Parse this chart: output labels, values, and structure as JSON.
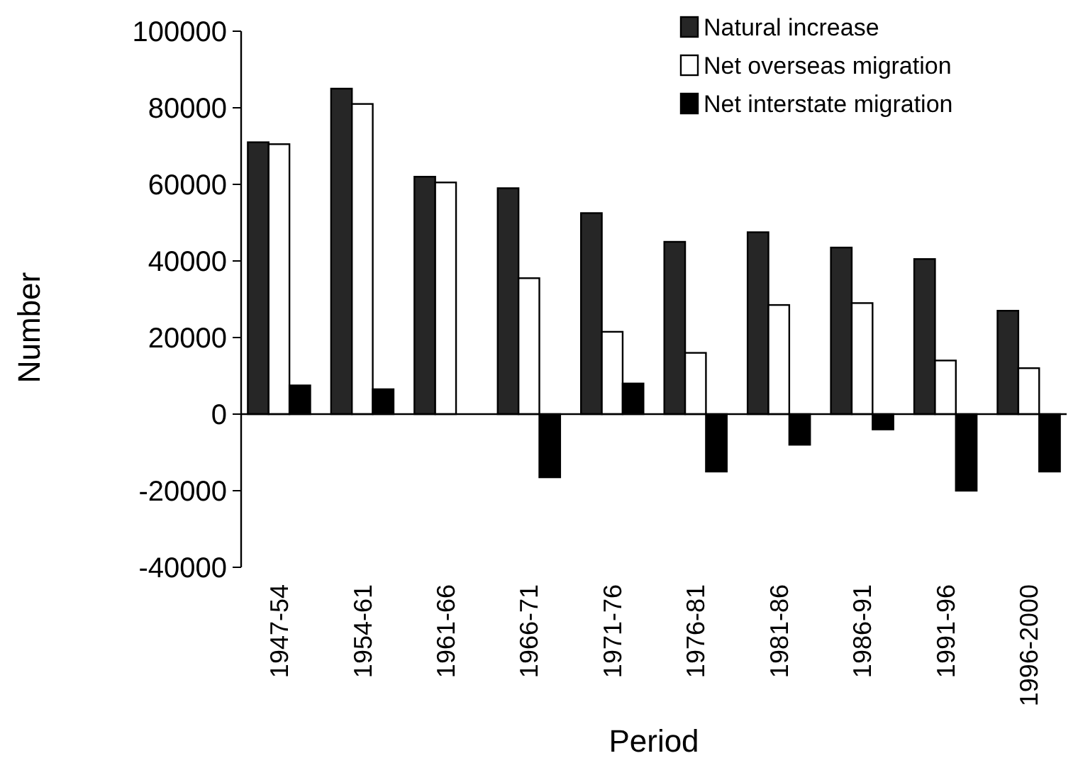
{
  "chart_data": {
    "type": "bar",
    "xlabel": "Period",
    "ylabel": "Number",
    "categories": [
      "1947-54",
      "1954-61",
      "1961-66",
      "1966-71",
      "1971-76",
      "1976-81",
      "1981-86",
      "1986-91",
      "1991-96",
      "1996-2000"
    ],
    "series": [
      {
        "name": "Natural increase",
        "color": "#262626",
        "values": [
          71000,
          85000,
          62000,
          59000,
          52500,
          45000,
          47500,
          43500,
          40500,
          27000
        ]
      },
      {
        "name": "Net overseas migration",
        "color": "#ffffff",
        "values": [
          70500,
          81000,
          60500,
          35500,
          21500,
          16000,
          28500,
          29000,
          14000,
          12000
        ]
      },
      {
        "name": "Net interstate migration",
        "color": "#000000",
        "values": [
          7500,
          6500,
          0,
          -16500,
          8000,
          -15000,
          -8000,
          -4000,
          -20000,
          -15000
        ]
      }
    ],
    "ylim": [
      -40000,
      100000
    ],
    "yticks": [
      -40000,
      -20000,
      0,
      20000,
      40000,
      60000,
      80000,
      100000
    ],
    "legend": "top right"
  }
}
